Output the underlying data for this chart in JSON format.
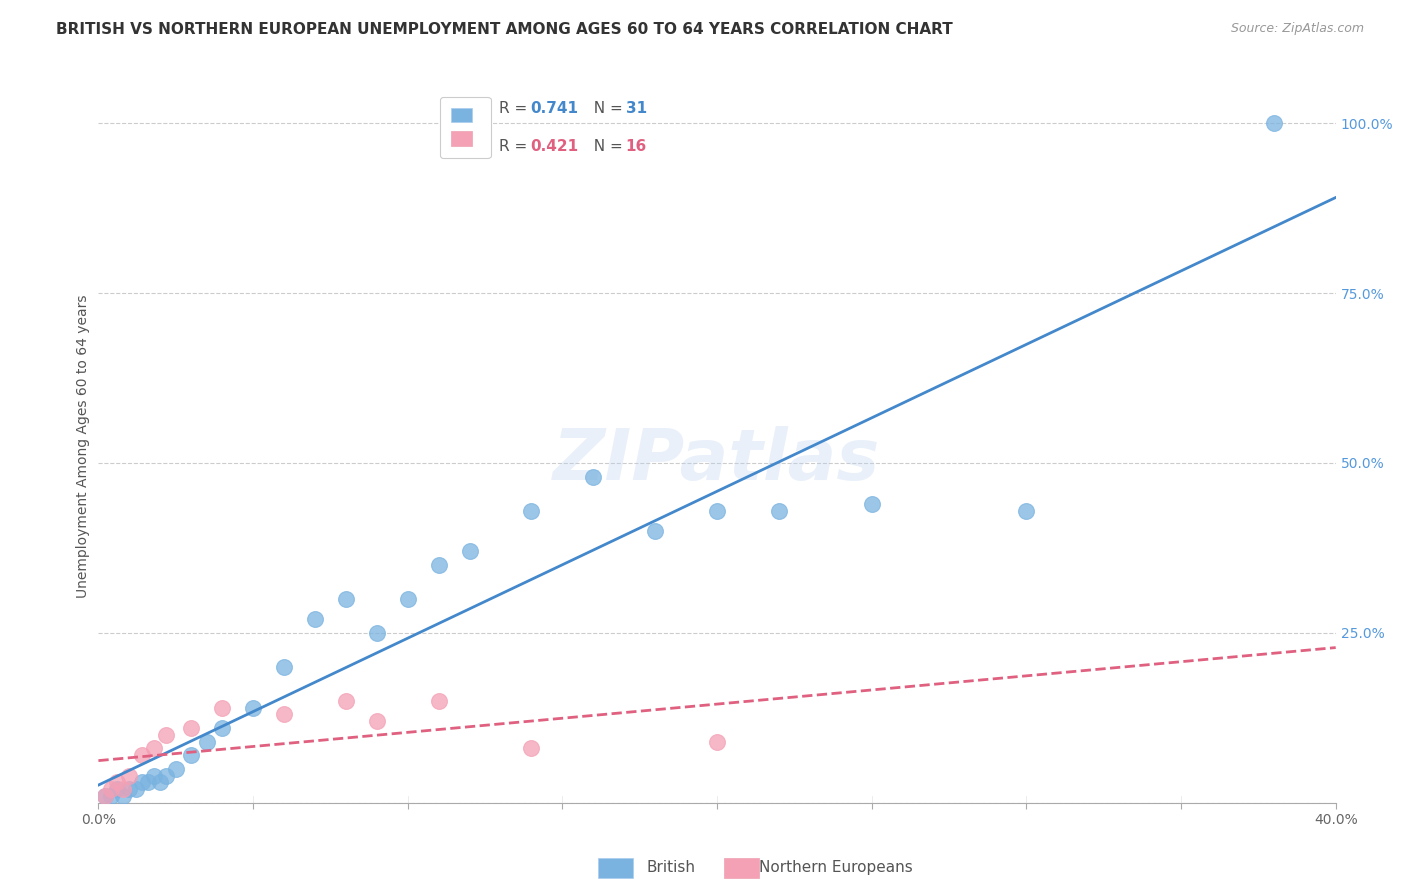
{
  "title": "BRITISH VS NORTHERN EUROPEAN UNEMPLOYMENT AMONG AGES 60 TO 64 YEARS CORRELATION CHART",
  "source": "Source: ZipAtlas.com",
  "ylabel": "Unemployment Among Ages 60 to 64 years",
  "xlim": [
    0.0,
    0.4
  ],
  "ylim": [
    0.0,
    1.05
  ],
  "xticks": [
    0.0,
    0.05,
    0.1,
    0.15,
    0.2,
    0.25,
    0.3,
    0.35,
    0.4
  ],
  "yticks_right": [
    0.0,
    0.25,
    0.5,
    0.75,
    1.0
  ],
  "yticklabels_right": [
    "",
    "25.0%",
    "50.0%",
    "75.0%",
    "100.0%"
  ],
  "british_R": 0.741,
  "british_N": 31,
  "northern_R": 0.421,
  "northern_N": 16,
  "british_color": "#7ab3e0",
  "northern_color": "#f4a0b5",
  "british_line_color": "#4488cc",
  "northern_line_color": "#e06080",
  "watermark": "ZIPatlas",
  "british_x": [
    0.002,
    0.004,
    0.006,
    0.008,
    0.01,
    0.012,
    0.014,
    0.016,
    0.018,
    0.02,
    0.022,
    0.025,
    0.03,
    0.035,
    0.04,
    0.05,
    0.06,
    0.07,
    0.08,
    0.09,
    0.1,
    0.11,
    0.12,
    0.14,
    0.16,
    0.18,
    0.2,
    0.22,
    0.25,
    0.3,
    0.38
  ],
  "british_y": [
    0.01,
    0.01,
    0.02,
    0.01,
    0.02,
    0.02,
    0.03,
    0.03,
    0.04,
    0.03,
    0.04,
    0.05,
    0.07,
    0.09,
    0.11,
    0.14,
    0.2,
    0.27,
    0.3,
    0.25,
    0.3,
    0.35,
    0.37,
    0.43,
    0.48,
    0.4,
    0.43,
    0.43,
    0.44,
    0.43,
    1.0
  ],
  "northern_x": [
    0.002,
    0.004,
    0.006,
    0.008,
    0.01,
    0.014,
    0.018,
    0.022,
    0.03,
    0.04,
    0.06,
    0.08,
    0.09,
    0.11,
    0.14,
    0.2
  ],
  "northern_y": [
    0.01,
    0.02,
    0.03,
    0.02,
    0.04,
    0.07,
    0.08,
    0.1,
    0.11,
    0.14,
    0.13,
    0.15,
    0.12,
    0.15,
    0.08,
    0.09
  ],
  "background_color": "#ffffff",
  "grid_color": "#cccccc",
  "title_fontsize": 11,
  "label_fontsize": 10,
  "tick_fontsize": 10
}
